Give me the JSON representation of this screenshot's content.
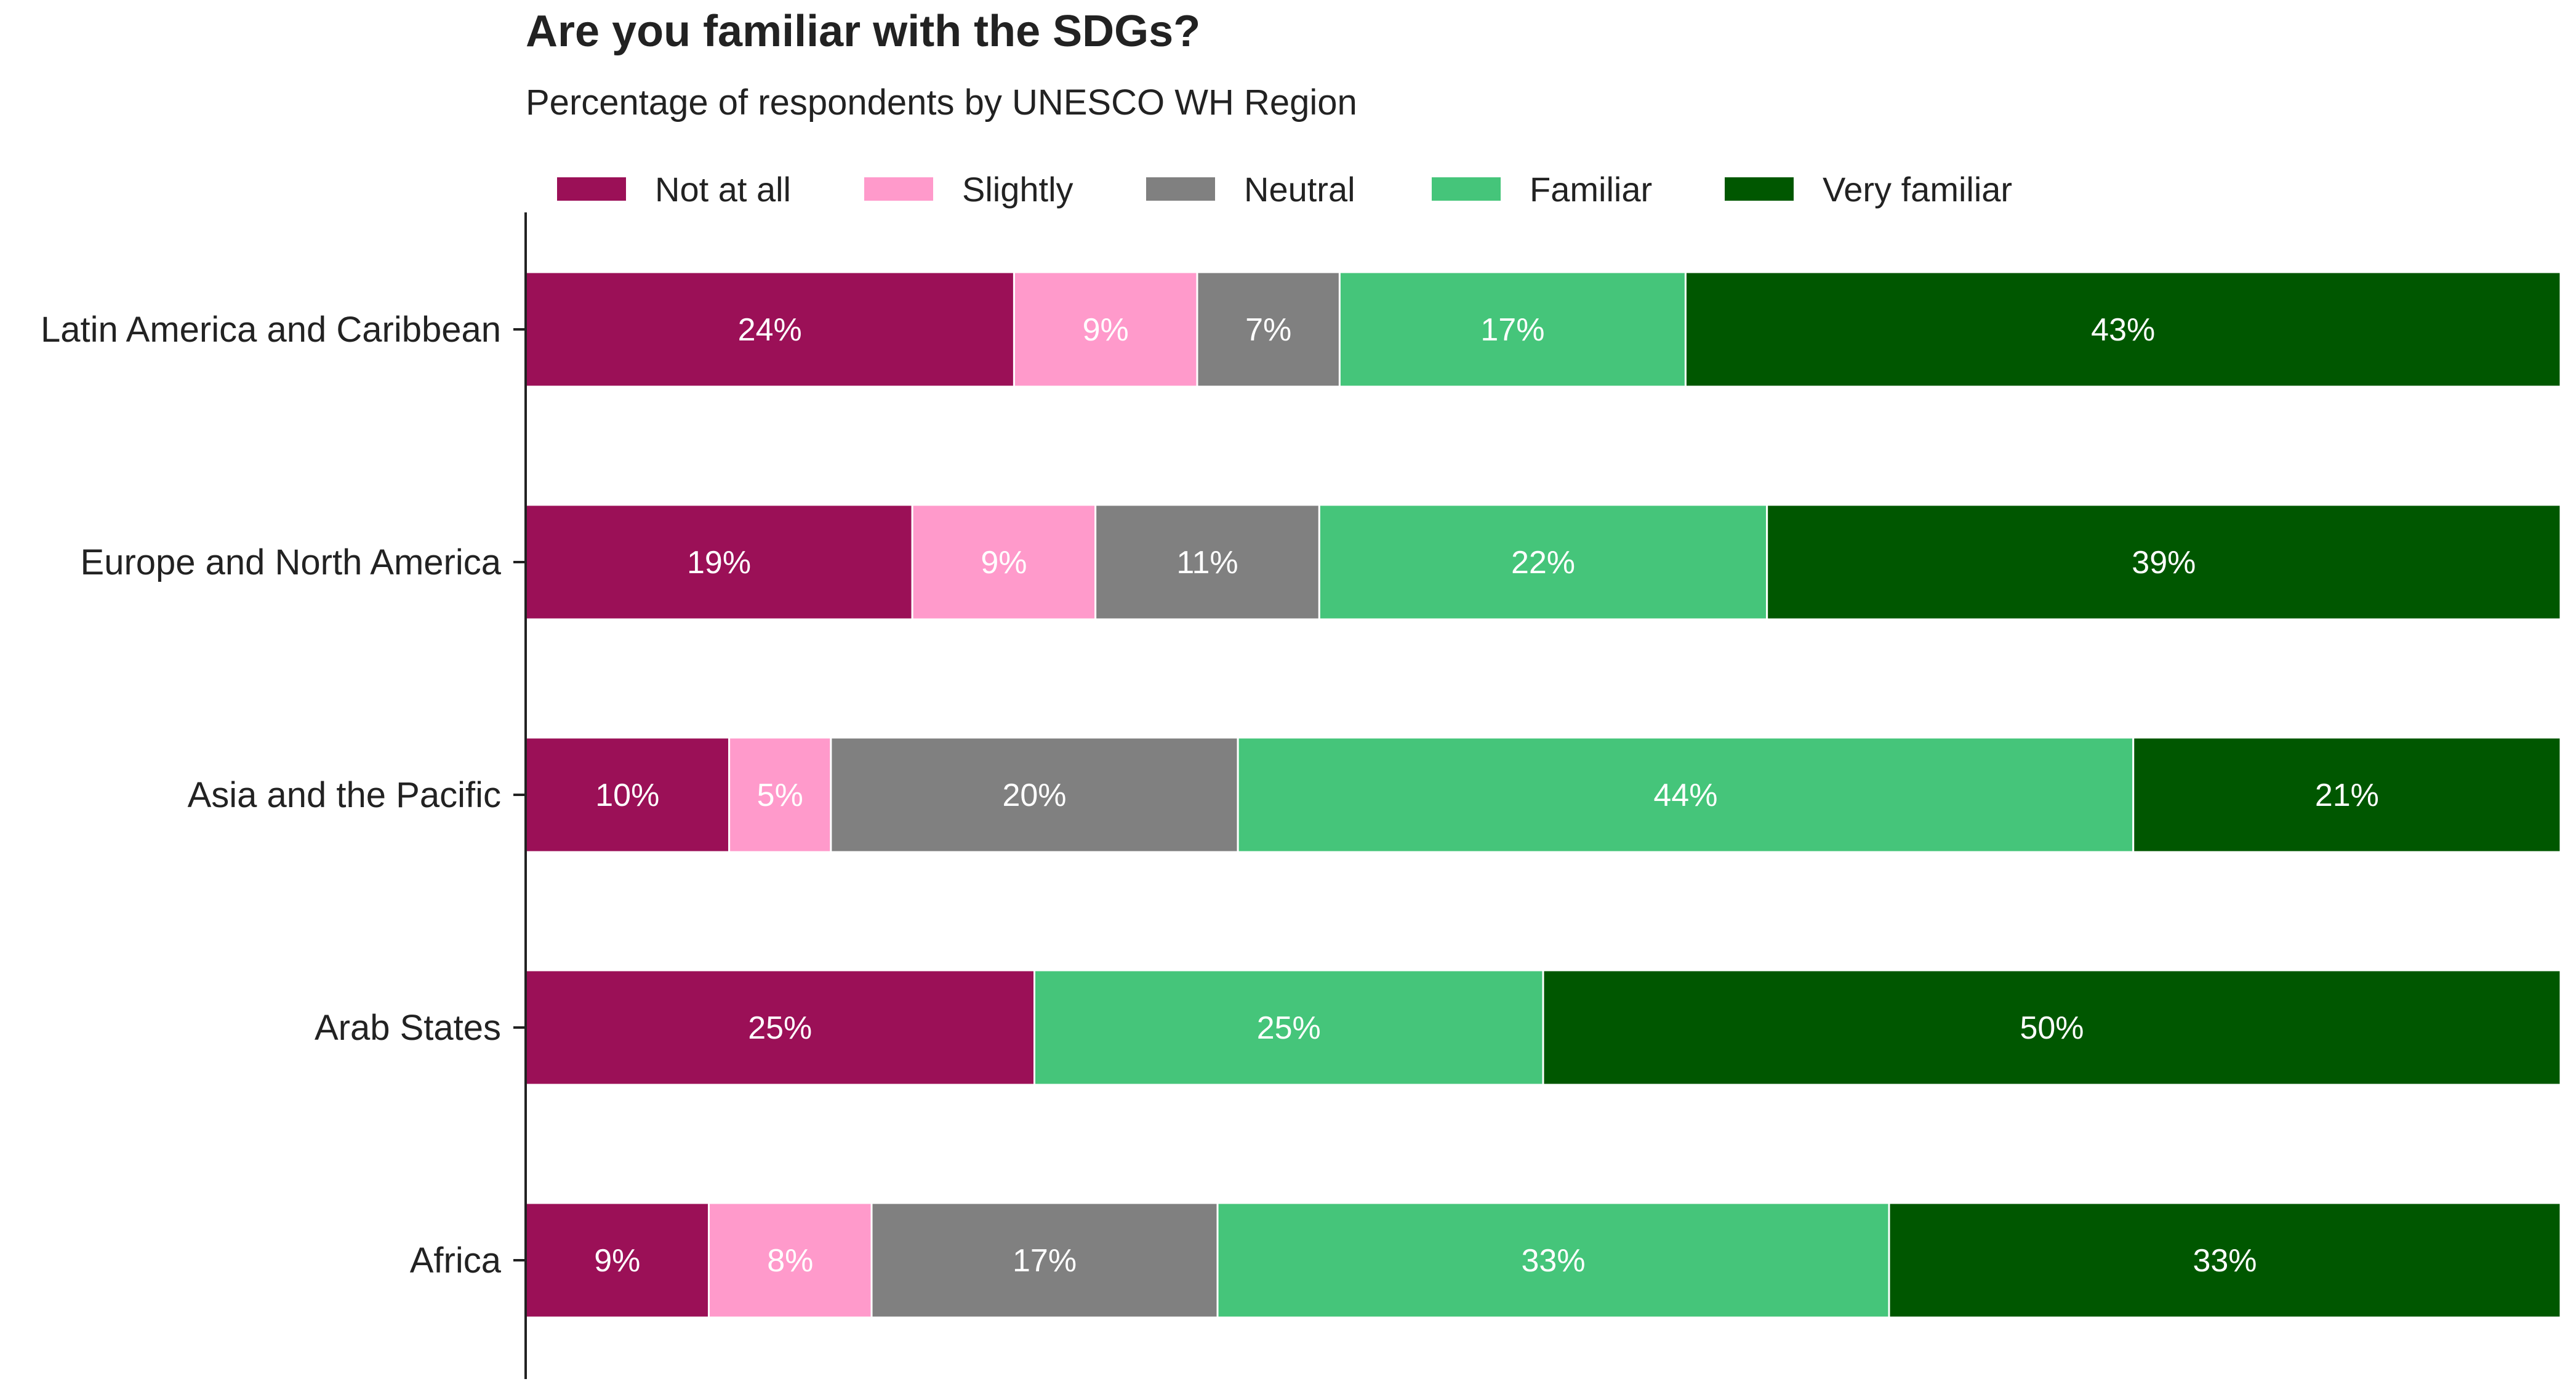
{
  "chart_data": {
    "type": "bar",
    "orientation": "horizontal",
    "stacked": true,
    "title": "Are you familiar with the SDGs?",
    "subtitle": "Percentage of respondents by UNESCO WH Region",
    "xlabel": "",
    "ylabel": "",
    "xlim": [
      0,
      100
    ],
    "grid": false,
    "legend_position": "top",
    "categories": [
      "Latin America and Caribbean",
      "Europe and North America",
      "Asia and the Pacific",
      "Arab States",
      "Africa"
    ],
    "series": [
      {
        "name": "Not at all",
        "color": "#9b1057",
        "values": [
          24,
          19,
          10,
          25,
          9
        ],
        "labels": [
          "24%",
          "19%",
          "10%",
          "25%",
          "9%"
        ]
      },
      {
        "name": "Slightly",
        "color": "#ff9acb",
        "values": [
          9,
          9,
          5,
          0,
          8
        ],
        "labels": [
          "9%",
          "9%",
          "5%",
          "",
          "8%"
        ]
      },
      {
        "name": "Neutral",
        "color": "#808080",
        "values": [
          7,
          11,
          20,
          0,
          17
        ],
        "labels": [
          "7%",
          "11%",
          "20%",
          "",
          "17%"
        ]
      },
      {
        "name": "Familiar",
        "color": "#45c57a",
        "values": [
          17,
          22,
          44,
          25,
          33
        ],
        "labels": [
          "17%",
          "22%",
          "44%",
          "25%",
          "33%"
        ]
      },
      {
        "name": "Very familiar",
        "color": "#005700",
        "values": [
          43,
          39,
          21,
          50,
          33
        ],
        "labels": [
          "43%",
          "39%",
          "21%",
          "50%",
          "33%"
        ]
      }
    ]
  }
}
